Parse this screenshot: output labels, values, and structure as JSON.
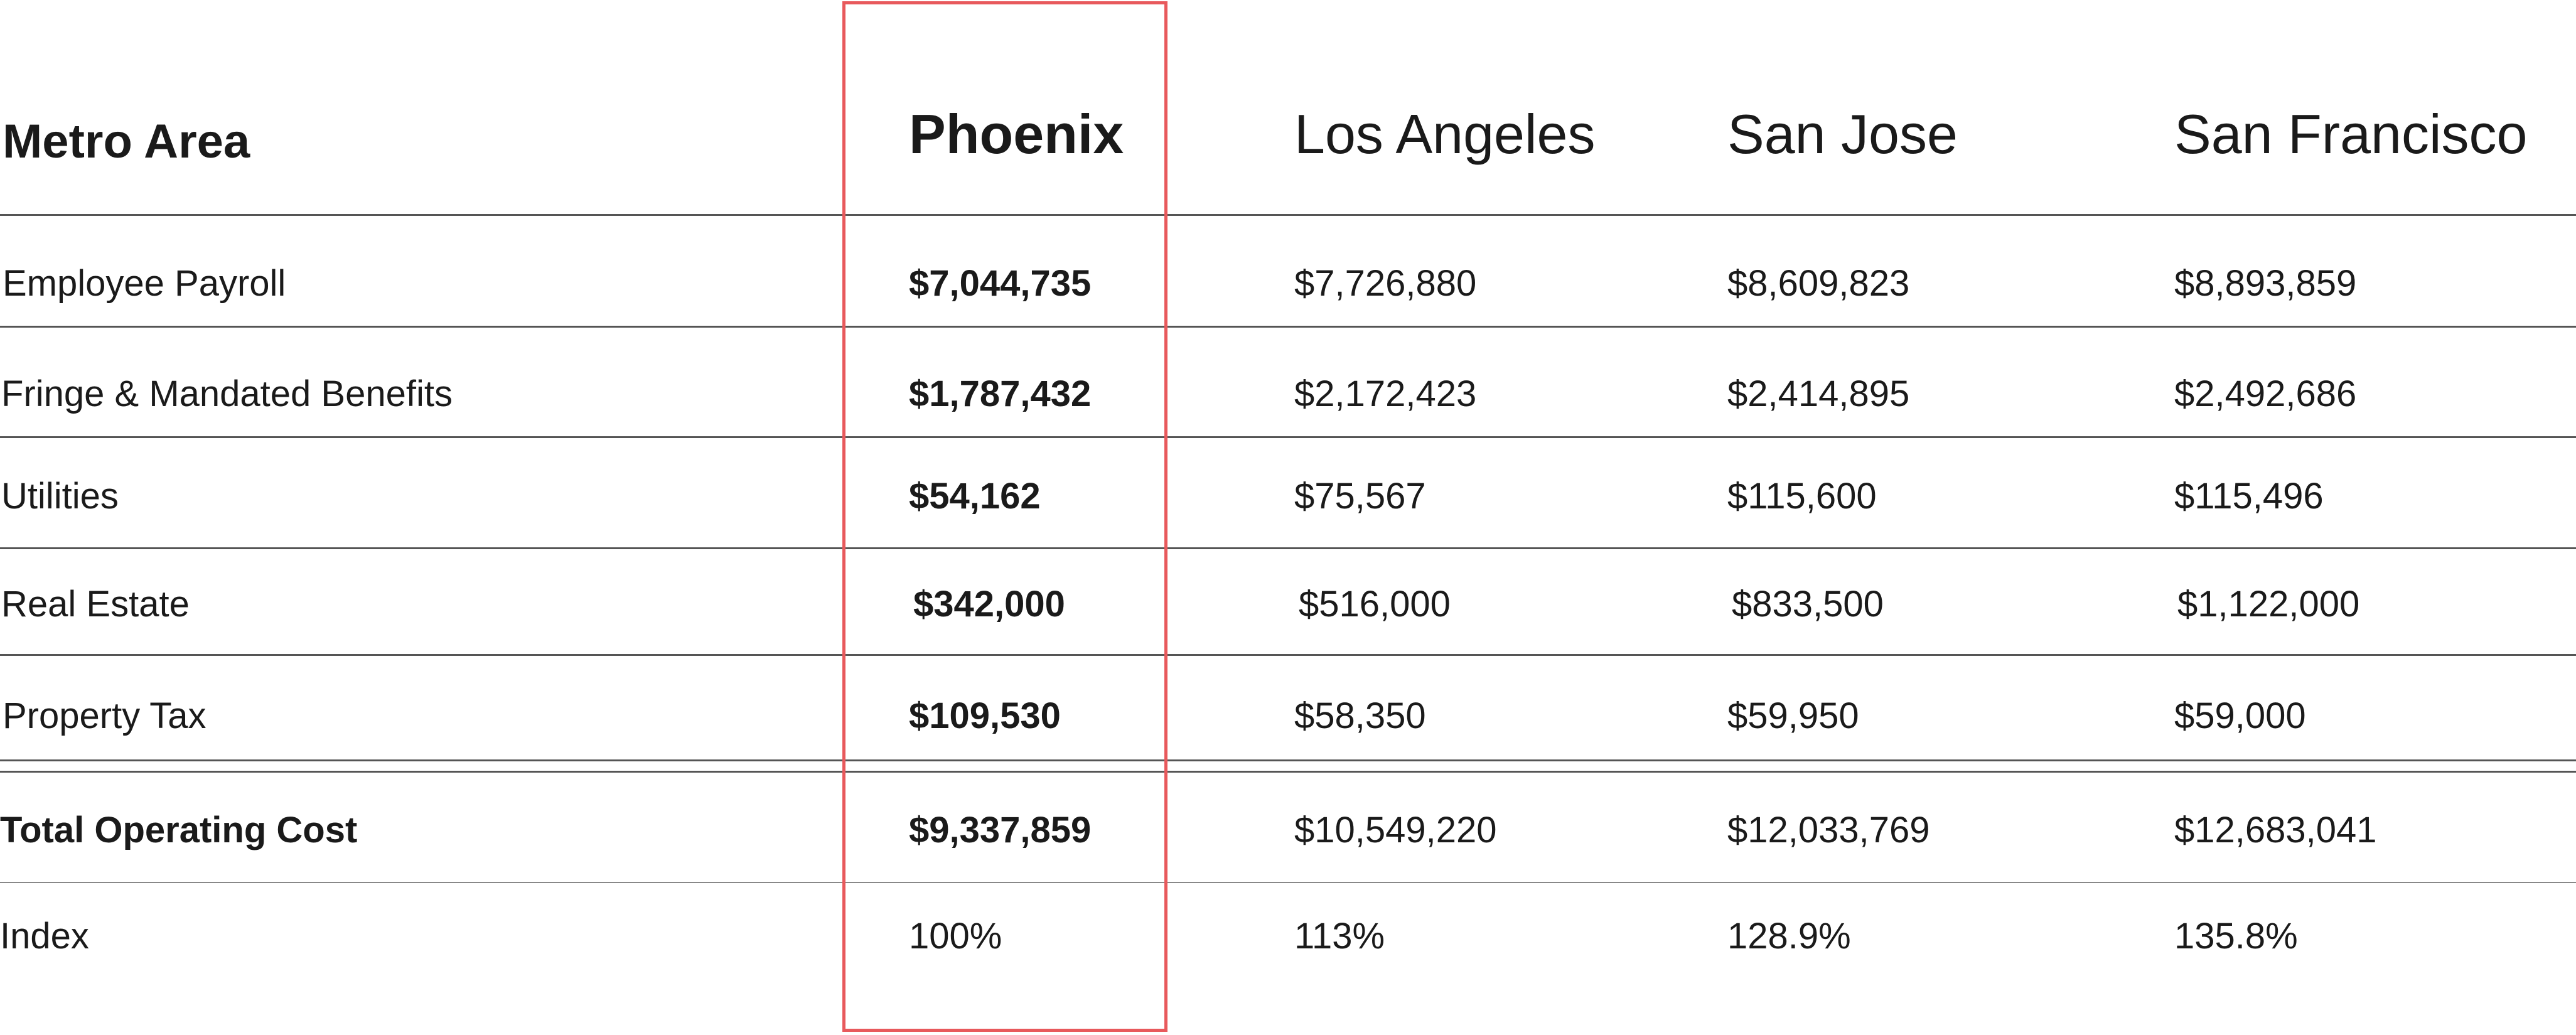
{
  "table": {
    "headers": [
      "Metro Area",
      "Phoenix",
      "Los Angeles",
      "San Jose",
      "San Francisco"
    ],
    "rows": [
      {
        "label": "Employee Payroll",
        "values": [
          "$7,044,735",
          "$7,726,880",
          "$8,609,823",
          "$8,893,859"
        ]
      },
      {
        "label": "Fringe & Mandated Benefits",
        "values": [
          "$1,787,432",
          "$2,172,423",
          "$2,414,895",
          "$2,492,686"
        ]
      },
      {
        "label": "Utilities",
        "values": [
          "$54,162",
          "$75,567",
          "$115,600",
          "$115,496"
        ]
      },
      {
        "label": "Real Estate",
        "values": [
          "$342,000",
          "$516,000",
          "$833,500",
          "$1,122,000"
        ]
      },
      {
        "label": "Property Tax",
        "values": [
          "$109,530",
          "$58,350",
          "$59,950",
          "$59,000"
        ]
      },
      {
        "label": "Total Operating Cost",
        "values": [
          "$9,337,859",
          "$10,549,220",
          "$12,033,769",
          "$12,683,041"
        ]
      },
      {
        "label": "Index",
        "values": [
          "100%",
          "113%",
          "128.9%",
          "135.8%"
        ]
      }
    ]
  },
  "highlight": {
    "column": "Phoenix",
    "color": "#e8595c"
  }
}
